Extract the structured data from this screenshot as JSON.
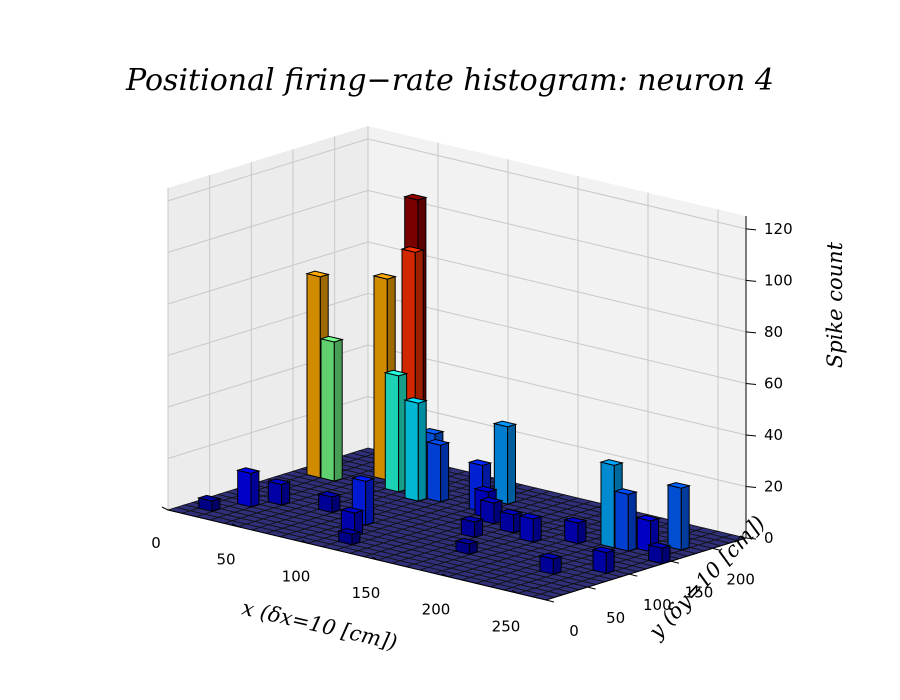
{
  "chart_data": {
    "type": "bar3d",
    "title": "Positional firing−rate histogram: neuron 4",
    "xlabel": "x (δx=10 [cm])",
    "ylabel": "y (δy=10 [cm])",
    "zlabel": "Spike count",
    "xlim": [
      0,
      270
    ],
    "ylim": [
      0,
      240
    ],
    "zlim": [
      0,
      125
    ],
    "x_ticks": [
      0,
      50,
      100,
      150,
      200,
      250
    ],
    "y_ticks": [
      0,
      50,
      100,
      150,
      200
    ],
    "z_ticks": [
      0,
      20,
      40,
      60,
      80,
      100,
      120
    ],
    "bin_size": 10,
    "grid": true,
    "colormap": "jet",
    "colors": {
      "floor": "#30307a",
      "pane": "#ececec",
      "pane_line": "#c8c8c8"
    },
    "bars": [
      {
        "x": 10,
        "y": 150,
        "z": 78
      },
      {
        "x": 20,
        "y": 150,
        "z": 54
      },
      {
        "x": 50,
        "y": 200,
        "z": 108
      },
      {
        "x": 60,
        "y": 180,
        "z": 91
      },
      {
        "x": 40,
        "y": 180,
        "z": 78
      },
      {
        "x": 60,
        "y": 160,
        "z": 45
      },
      {
        "x": 80,
        "y": 150,
        "z": 38
      },
      {
        "x": 80,
        "y": 170,
        "z": 24
      },
      {
        "x": 90,
        "y": 160,
        "z": 22
      },
      {
        "x": 120,
        "y": 190,
        "z": 30
      },
      {
        "x": 120,
        "y": 160,
        "z": 18
      },
      {
        "x": 20,
        "y": 50,
        "z": 13
      },
      {
        "x": 30,
        "y": 70,
        "z": 8
      },
      {
        "x": 90,
        "y": 70,
        "z": 17
      },
      {
        "x": 100,
        "y": 40,
        "z": 9
      },
      {
        "x": 220,
        "y": 150,
        "z": 32
      },
      {
        "x": 230,
        "y": 150,
        "z": 22
      },
      {
        "x": 250,
        "y": 180,
        "z": 24
      },
      {
        "x": 240,
        "y": 160,
        "z": 12
      },
      {
        "x": 130,
        "y": 150,
        "z": 10
      },
      {
        "x": 140,
        "y": 140,
        "z": 8
      },
      {
        "x": 160,
        "y": 130,
        "z": 7
      },
      {
        "x": 180,
        "y": 120,
        "z": 9
      },
      {
        "x": 200,
        "y": 140,
        "z": 8
      },
      {
        "x": 150,
        "y": 100,
        "z": 6
      },
      {
        "x": 60,
        "y": 80,
        "z": 6
      },
      {
        "x": 110,
        "y": 20,
        "z": 4
      },
      {
        "x": 230,
        "y": 60,
        "z": 6
      },
      {
        "x": 250,
        "y": 90,
        "z": 8
      },
      {
        "x": 260,
        "y": 140,
        "z": 6
      },
      {
        "x": 10,
        "y": 20,
        "z": 4
      },
      {
        "x": 170,
        "y": 60,
        "z": 4
      }
    ]
  }
}
